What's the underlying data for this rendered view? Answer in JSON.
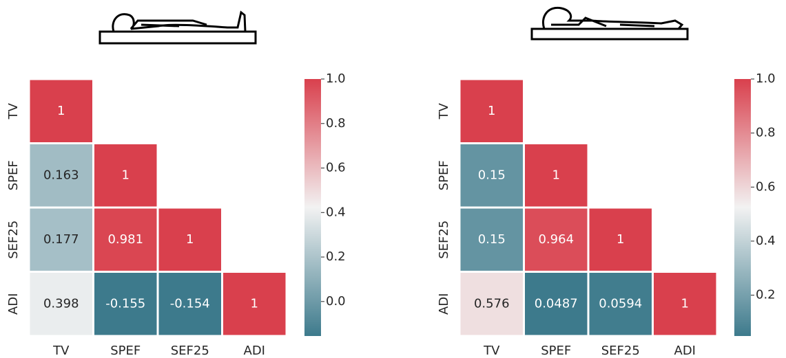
{
  "chart_data": [
    {
      "type": "heatmap",
      "x_categories": [
        "TV",
        "SPEF",
        "SEF25",
        "ADI"
      ],
      "y_categories": [
        "TV",
        "SPEF",
        "SEF25",
        "ADI"
      ],
      "values": [
        [
          1,
          null,
          null,
          null
        ],
        [
          0.163,
          1,
          null,
          null
        ],
        [
          0.177,
          0.981,
          1,
          null
        ],
        [
          0.398,
          -0.155,
          -0.154,
          1
        ]
      ],
      "clim": [
        -0.155,
        1
      ],
      "cticks": [
        {
          "value": 0,
          "label": "0.0"
        },
        {
          "value": 0.2,
          "label": "0.2"
        },
        {
          "value": 0.4,
          "label": "0.4"
        },
        {
          "value": 0.6,
          "label": "0.6"
        },
        {
          "value": 0.8,
          "label": "0.8"
        },
        {
          "value": 1,
          "label": "1.0"
        }
      ],
      "colors": [
        "#3d7a8c",
        "#f2f2f2",
        "#d9404d"
      ]
    },
    {
      "type": "heatmap",
      "x_categories": [
        "TV",
        "SPEF",
        "SEF25",
        "ADI"
      ],
      "y_categories": [
        "TV",
        "SPEF",
        "SEF25",
        "ADI"
      ],
      "values": [
        [
          1,
          null,
          null,
          null
        ],
        [
          0.15,
          1,
          null,
          null
        ],
        [
          0.15,
          0.964,
          1,
          null
        ],
        [
          0.576,
          0.0487,
          0.0594,
          1
        ]
      ],
      "clim": [
        0.0487,
        1
      ],
      "cticks": [
        {
          "value": 0.2,
          "label": "0.2"
        },
        {
          "value": 0.4,
          "label": "0.4"
        },
        {
          "value": 0.6,
          "label": "0.6"
        },
        {
          "value": 0.8,
          "label": "0.8"
        },
        {
          "value": 1,
          "label": "1.0"
        }
      ],
      "colors": [
        "#3d7a8c",
        "#f2f2f2",
        "#d9404d"
      ]
    }
  ]
}
